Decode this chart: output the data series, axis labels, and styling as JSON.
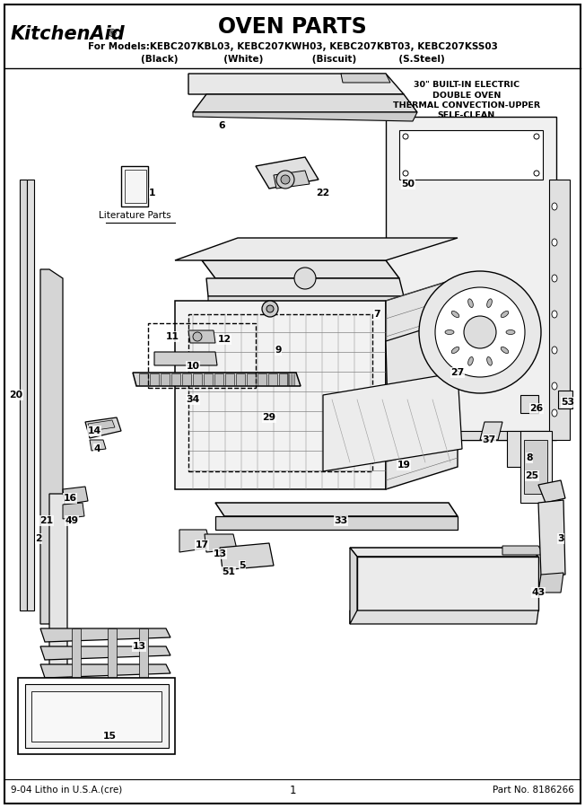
{
  "title": "OVEN PARTS",
  "brand": "KitchenAid®",
  "subtitle": "For Models:KEBC207KBL03, KEBC207KWH03, KEBC207KBT03, KEBC207KSS03",
  "subtitle2": "(Black)              (White)               (Biscuit)             (S.Steel)",
  "description": "30\" BUILT-IN ELECTRIC\nDOUBLE OVEN\nTHERMAL CONVECTION-UPPER\nSELF-CLEAN",
  "footer_left": "9-04 Litho in U.S.A.(cre)",
  "footer_center": "1",
  "footer_right": "Part No. 8186266",
  "bg_color": "#ffffff",
  "fig_width": 6.52,
  "fig_height": 9.0,
  "dpi": 100
}
